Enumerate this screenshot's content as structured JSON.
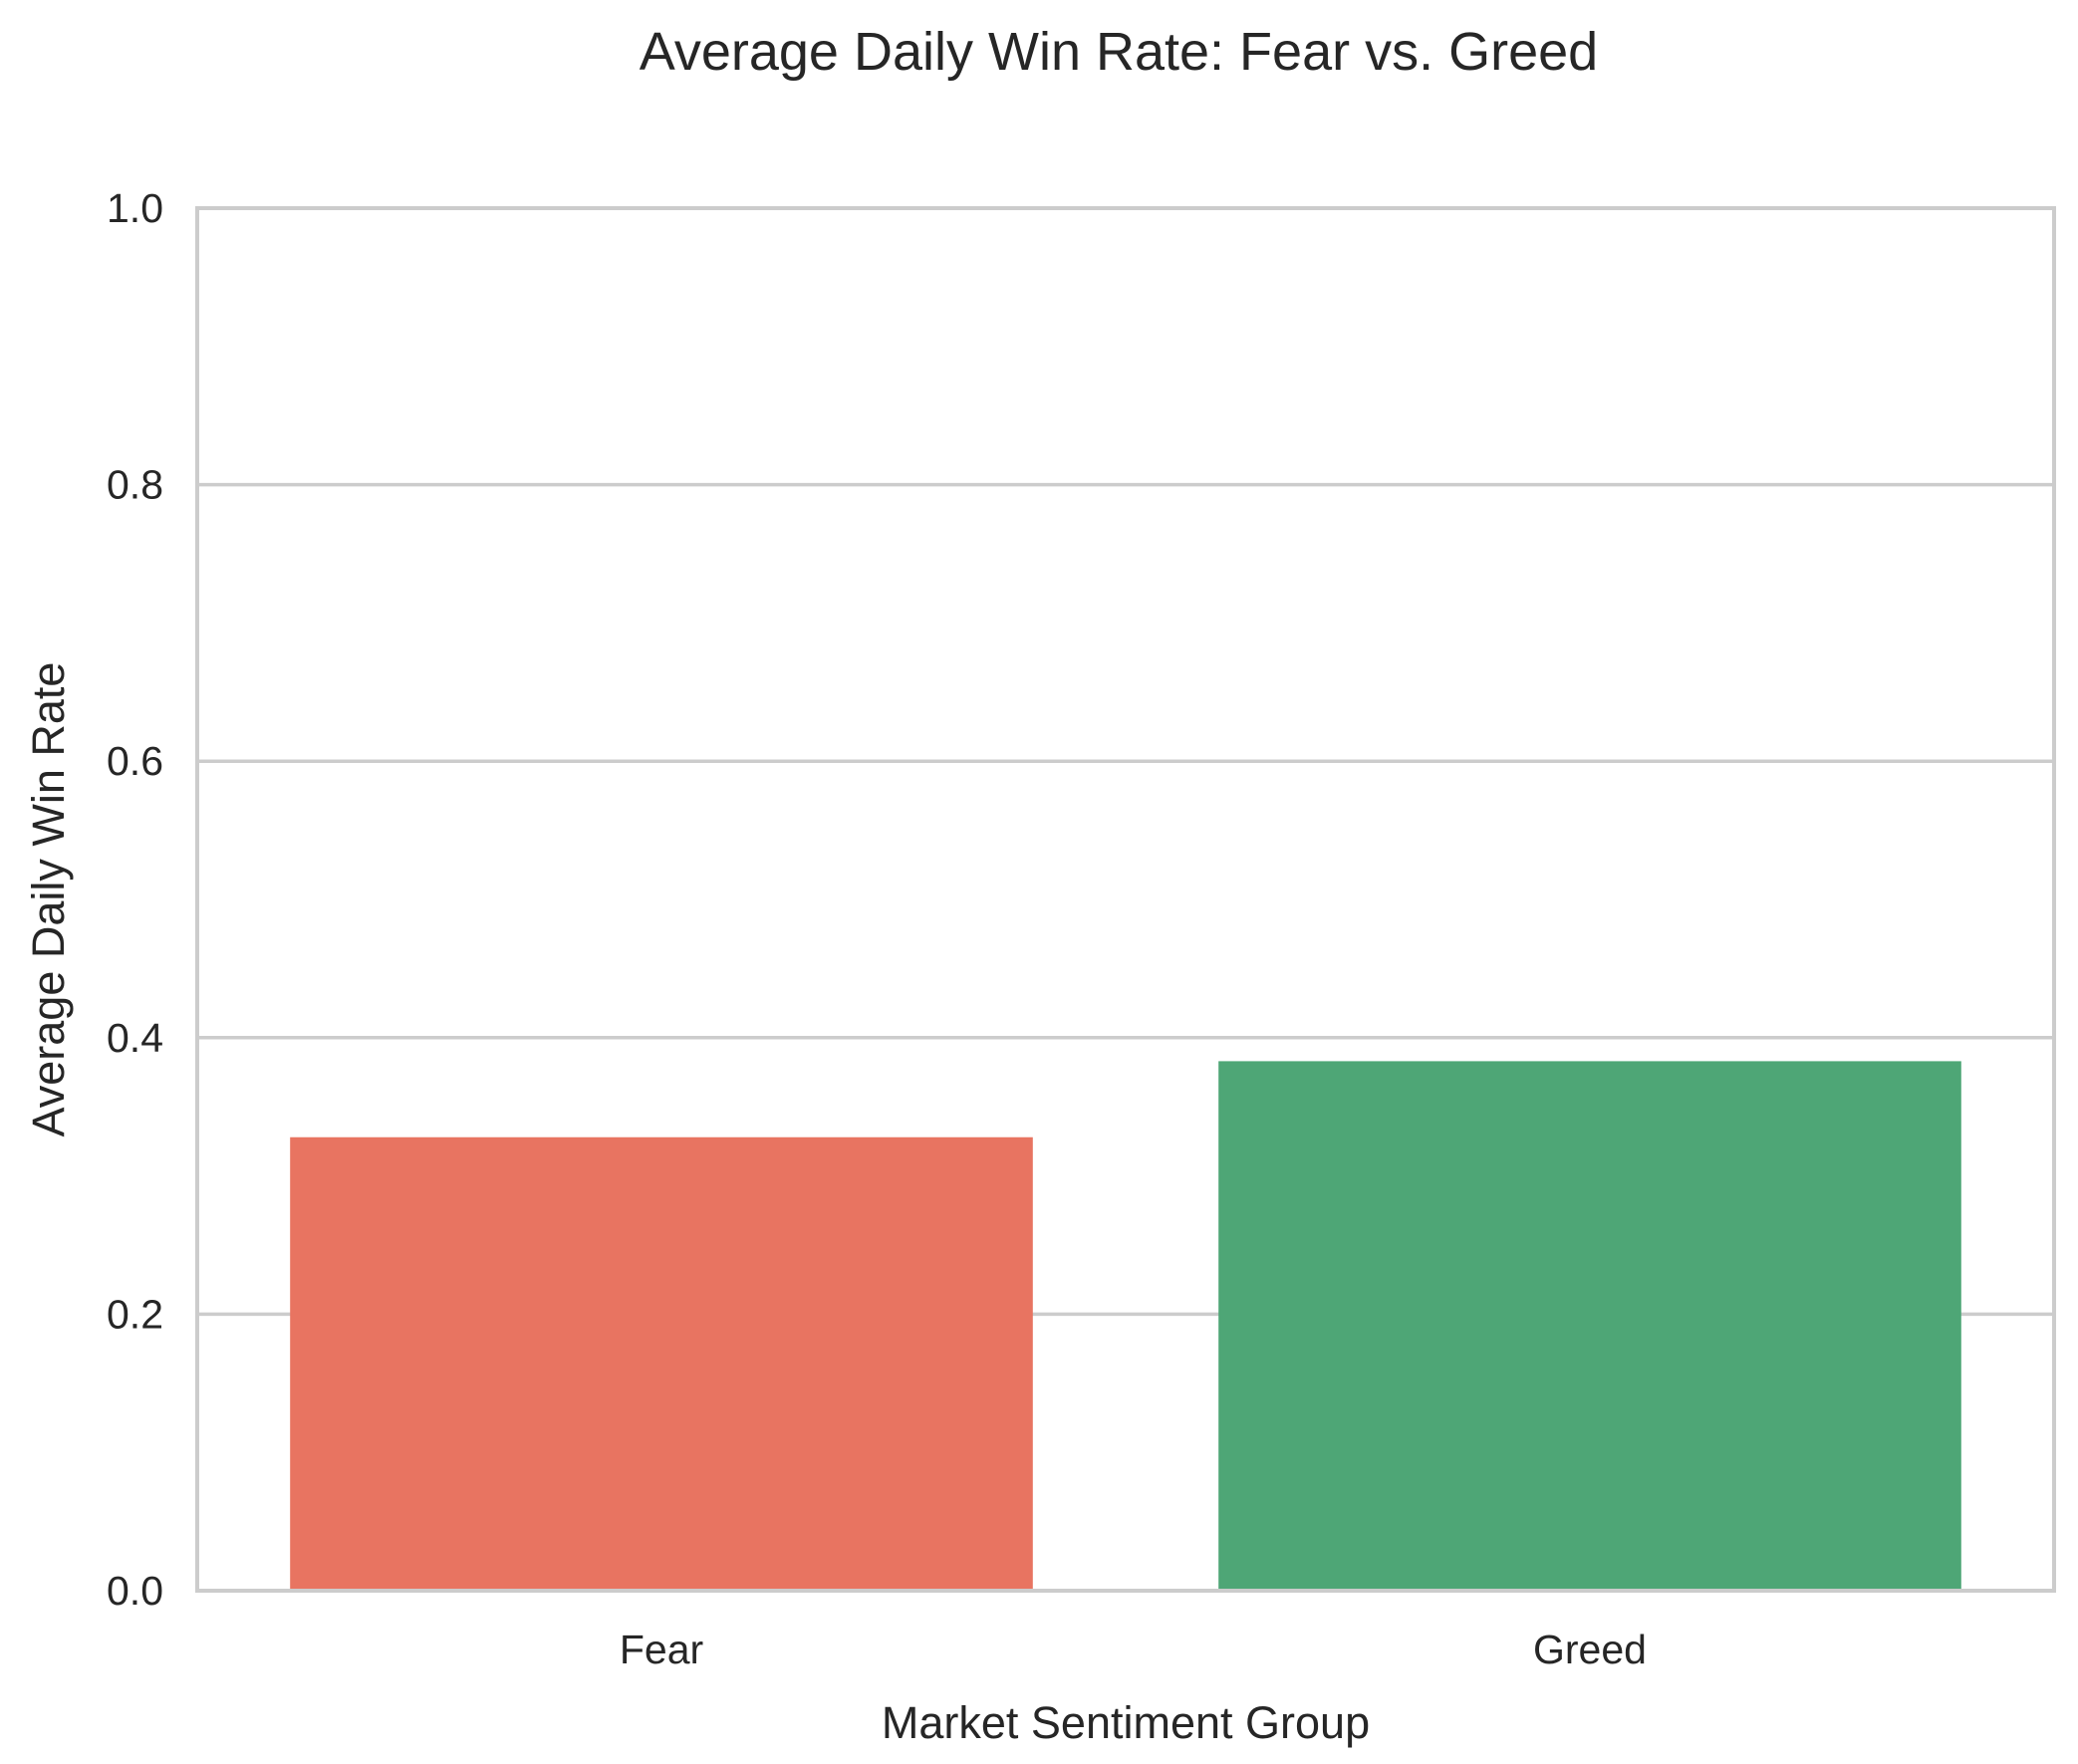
{
  "chart_data": {
    "type": "bar",
    "title": "Average Daily Win Rate: Fear vs. Greed",
    "xlabel": "Market Sentiment Group",
    "ylabel": "Average Daily Win Rate",
    "categories": [
      "Fear",
      "Greed"
    ],
    "values": [
      0.328,
      0.383
    ],
    "colors": [
      "#e87461",
      "#4ea676"
    ],
    "ylim": [
      0,
      1.0
    ],
    "yticks": [
      "0.0",
      "0.2",
      "0.4",
      "0.6",
      "0.8",
      "1.0"
    ],
    "ytick_values": [
      0.0,
      0.2,
      0.4,
      0.6,
      0.8,
      1.0
    ],
    "grid": "horizontal",
    "legend": "none"
  }
}
